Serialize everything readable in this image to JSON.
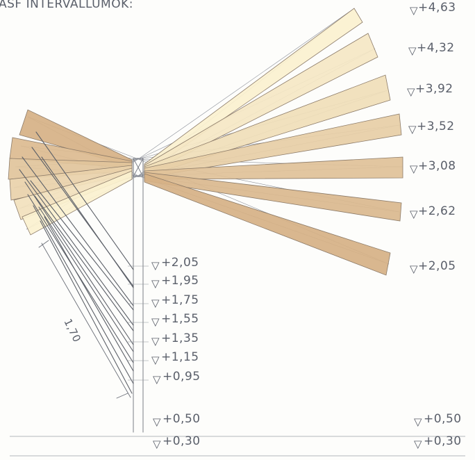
{
  "title": "ASF INTERVALLUMOK:",
  "scale_label": "1,70",
  "marker_symbol": "▽",
  "right_levels": [
    "+4,63",
    "+4,32",
    "+3,92",
    "+3,52",
    "+3,08",
    "+2,62",
    "+2,05"
  ],
  "post_levels": [
    "+2,05",
    "+1,95",
    "+1,75",
    "+1,55",
    "+1,35",
    "+1,15",
    "+0,95"
  ],
  "ground_levels": {
    "upper_left": "+0,50",
    "upper_right": "+0,50",
    "lower_left": "+0,30",
    "lower_right": "+0,30"
  },
  "colors": {
    "pencil": "#6b6f78",
    "board_dark": "#d6b185",
    "board_light": "#fbf1cf"
  }
}
